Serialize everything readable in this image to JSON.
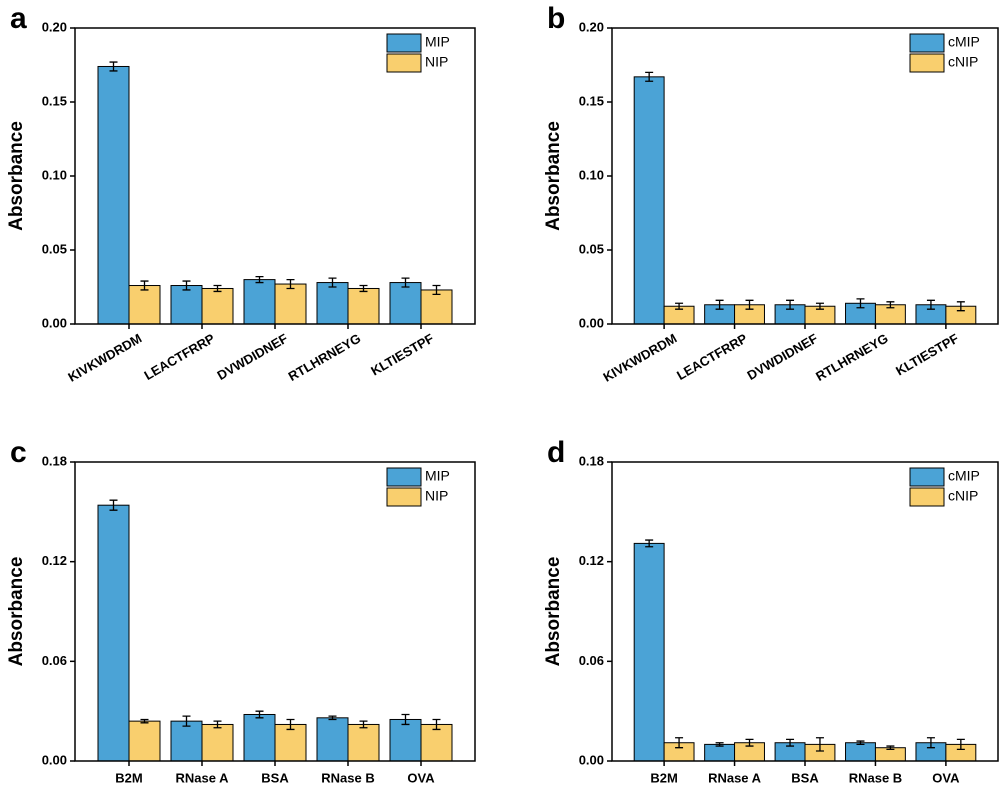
{
  "chart_data": [
    {
      "type": "bar",
      "panel": "a",
      "ylabel": "Absorbance",
      "categories": [
        "KIVKWDRDM",
        "LEACTFRRP",
        "DVWDIDNEF",
        "RTLHRNEYG",
        "KLTIESTPF"
      ],
      "series": [
        {
          "name": "MIP",
          "color": "#4ba3d6",
          "values": [
            0.174,
            0.026,
            0.03,
            0.028,
            0.028
          ],
          "errors": [
            0.003,
            0.003,
            0.002,
            0.003,
            0.003
          ]
        },
        {
          "name": "NIP",
          "color": "#f9cf6e",
          "values": [
            0.026,
            0.024,
            0.027,
            0.024,
            0.023
          ],
          "errors": [
            0.003,
            0.002,
            0.003,
            0.002,
            0.003
          ]
        }
      ],
      "ylim": [
        0,
        0.2
      ],
      "yticks": [
        {
          "value": 0,
          "label": "0.00"
        },
        {
          "value": 0.05,
          "label": "0.05"
        },
        {
          "value": 0.1,
          "label": "0.10"
        },
        {
          "value": 0.15,
          "label": "0.15"
        },
        {
          "value": 0.2,
          "label": "0.20"
        }
      ],
      "legend": "upper right"
    },
    {
      "type": "bar",
      "panel": "b",
      "ylabel": "Absorbance",
      "categories": [
        "KIVKWDRDM",
        "LEACTFRRP",
        "DVWDIDNEF",
        "RTLHRNEYG",
        "KLTIESTPF"
      ],
      "series": [
        {
          "name": "cMIP",
          "color": "#4ba3d6",
          "values": [
            0.167,
            0.013,
            0.013,
            0.014,
            0.013
          ],
          "errors": [
            0.003,
            0.003,
            0.003,
            0.003,
            0.003
          ]
        },
        {
          "name": "cNIP",
          "color": "#f9cf6e",
          "values": [
            0.012,
            0.013,
            0.012,
            0.013,
            0.012
          ],
          "errors": [
            0.002,
            0.003,
            0.002,
            0.002,
            0.003
          ]
        }
      ],
      "ylim": [
        0,
        0.2
      ],
      "yticks": [
        {
          "value": 0,
          "label": "0.00"
        },
        {
          "value": 0.05,
          "label": "0.05"
        },
        {
          "value": 0.1,
          "label": "0.10"
        },
        {
          "value": 0.15,
          "label": "0.15"
        },
        {
          "value": 0.2,
          "label": "0.20"
        }
      ],
      "legend": "upper right"
    },
    {
      "type": "bar",
      "panel": "c",
      "ylabel": "Absorbance",
      "categories": [
        "B2M",
        "RNase A",
        "BSA",
        "RNase B",
        "OVA"
      ],
      "series": [
        {
          "name": "MIP",
          "color": "#4ba3d6",
          "values": [
            0.154,
            0.024,
            0.028,
            0.026,
            0.025
          ],
          "errors": [
            0.003,
            0.003,
            0.002,
            0.001,
            0.003
          ]
        },
        {
          "name": "NIP",
          "color": "#f9cf6e",
          "values": [
            0.024,
            0.022,
            0.022,
            0.022,
            0.022
          ],
          "errors": [
            0.001,
            0.002,
            0.003,
            0.002,
            0.003
          ]
        }
      ],
      "ylim": [
        0,
        0.18
      ],
      "yticks": [
        {
          "value": 0,
          "label": "0.00"
        },
        {
          "value": 0.06,
          "label": "0.06"
        },
        {
          "value": 0.12,
          "label": "0.12"
        },
        {
          "value": 0.18,
          "label": "0.18"
        }
      ],
      "legend": "upper right"
    },
    {
      "type": "bar",
      "panel": "d",
      "ylabel": "Absorbance",
      "categories": [
        "B2M",
        "RNase A",
        "BSA",
        "RNase B",
        "OVA"
      ],
      "series": [
        {
          "name": "cMIP",
          "color": "#4ba3d6",
          "values": [
            0.131,
            0.01,
            0.011,
            0.011,
            0.011
          ],
          "errors": [
            0.002,
            0.001,
            0.002,
            0.001,
            0.003
          ]
        },
        {
          "name": "cNIP",
          "color": "#f9cf6e",
          "values": [
            0.011,
            0.011,
            0.01,
            0.008,
            0.01
          ],
          "errors": [
            0.003,
            0.002,
            0.004,
            0.001,
            0.003
          ]
        }
      ],
      "ylim": [
        0,
        0.18
      ],
      "yticks": [
        {
          "value": 0,
          "label": "0.00"
        },
        {
          "value": 0.06,
          "label": "0.06"
        },
        {
          "value": 0.12,
          "label": "0.12"
        },
        {
          "value": 0.18,
          "label": "0.18"
        }
      ],
      "legend": "upper right"
    }
  ]
}
